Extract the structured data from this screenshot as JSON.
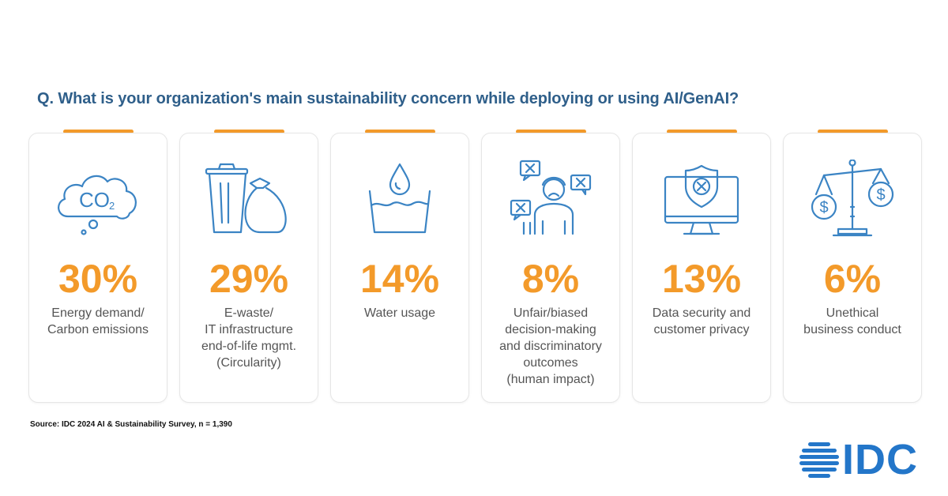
{
  "question": "Q. What is your organization's main sustainability concern while deploying or using AI/GenAI?",
  "accent_color": "#f39a2a",
  "icon_color": "#3b84c4",
  "cards": [
    {
      "icon": "co2-cloud-icon",
      "icon_text": "CO",
      "icon_sub": "2",
      "percent": "30%",
      "label": "Energy demand/\nCarbon emissions"
    },
    {
      "icon": "trash-bin-bag-icon",
      "percent": "29%",
      "label": "E-waste/\nIT infrastructure\nend-of-life mgmt.\n(Circularity)"
    },
    {
      "icon": "water-drop-bowl-icon",
      "percent": "14%",
      "label": "Water usage"
    },
    {
      "icon": "person-rejected-bubbles-icon",
      "percent": "8%",
      "label": "Unfair/biased\ndecision-making\nand discriminatory\noutcomes\n(human impact)"
    },
    {
      "icon": "monitor-shield-icon",
      "percent": "13%",
      "label": "Data security and\ncustomer privacy"
    },
    {
      "icon": "dollar-scale-icon",
      "percent": "6%",
      "label": "Unethical\nbusiness conduct"
    }
  ],
  "source": "Source: IDC 2024 AI & Sustainability Survey, n = 1,390",
  "logo": {
    "text": "IDC",
    "color": "#2376c9"
  }
}
